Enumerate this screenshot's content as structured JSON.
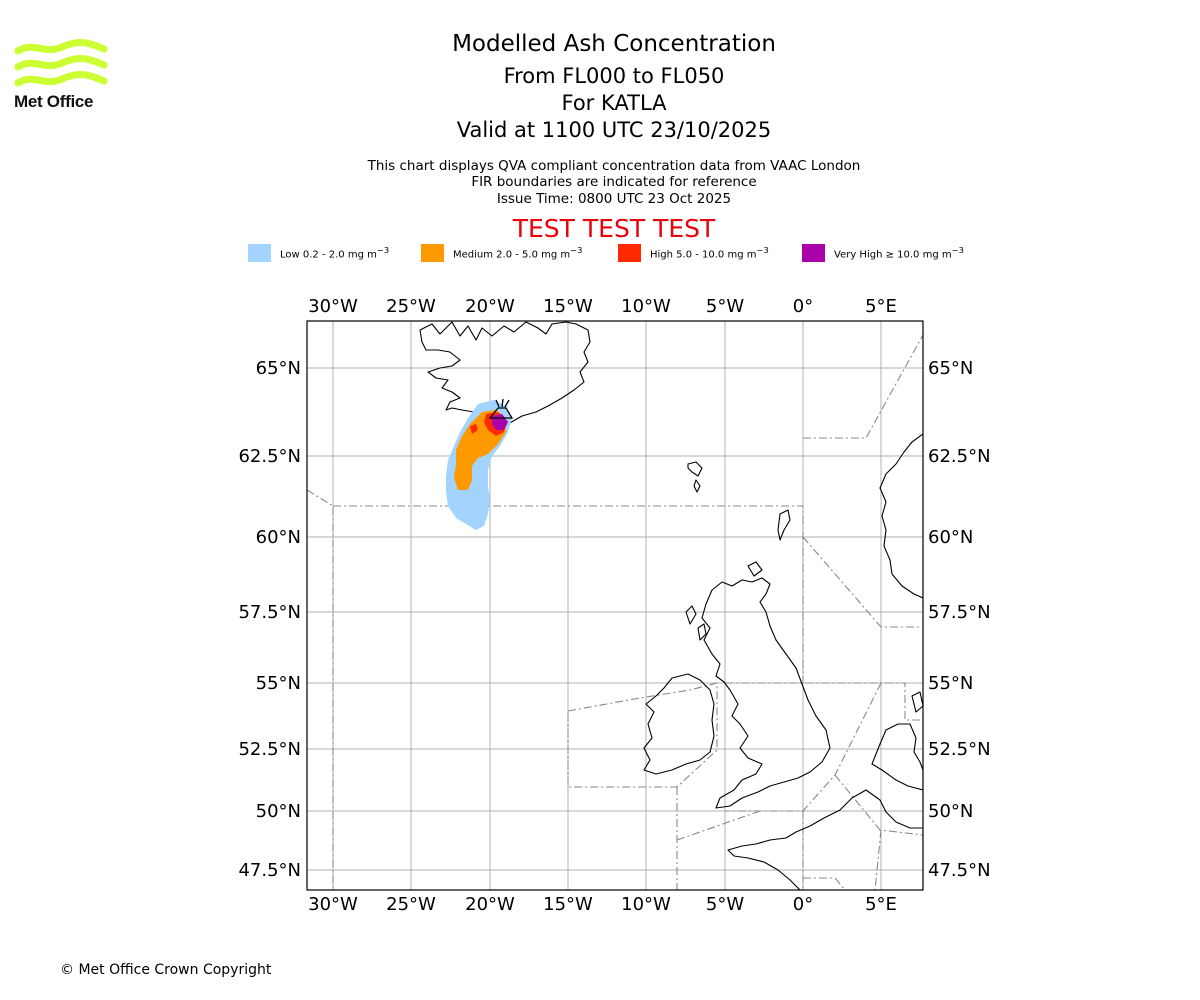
{
  "logo": {
    "text": "Met Office",
    "color": "#ccff33"
  },
  "titles": {
    "main": "Modelled Ash Concentration",
    "levels": "From FL000 to FL050",
    "volcano": "For KATLA",
    "valid": "Valid at 1100 UTC 23/10/2025"
  },
  "subtitles": {
    "line1": "This chart displays QVA compliant concentration data from VAAC London",
    "line2": "FIR boundaries are indicated for reference",
    "line3": "Issue Time: 0800 UTC 23 Oct 2025"
  },
  "test_banner": "TEST TEST TEST",
  "legend": [
    {
      "label": "Low 0.2 - 2.0 mg m",
      "sup": "−3",
      "color": "#a3d4ff"
    },
    {
      "label": "Medium 2.0 - 5.0 mg m",
      "sup": "−3",
      "color": "#ff9900"
    },
    {
      "label": "High 5.0 - 10.0 mg m",
      "sup": "−3",
      "color": "#ff2a00"
    },
    {
      "label": "Very High  ≥  10.0 mg m",
      "sup": "−3",
      "color": "#aa00aa"
    }
  ],
  "map": {
    "lon_ticks": [
      "30°W",
      "25°W",
      "20°W",
      "15°W",
      "10°W",
      "5°W",
      "0°",
      "5°E"
    ],
    "lat_ticks": [
      "65°N",
      "62.5°N",
      "60°N",
      "57.5°N",
      "55°N",
      "52.5°N",
      "50°N",
      "47.5°N"
    ]
  },
  "copyright": "© Met Office Crown Copyright"
}
